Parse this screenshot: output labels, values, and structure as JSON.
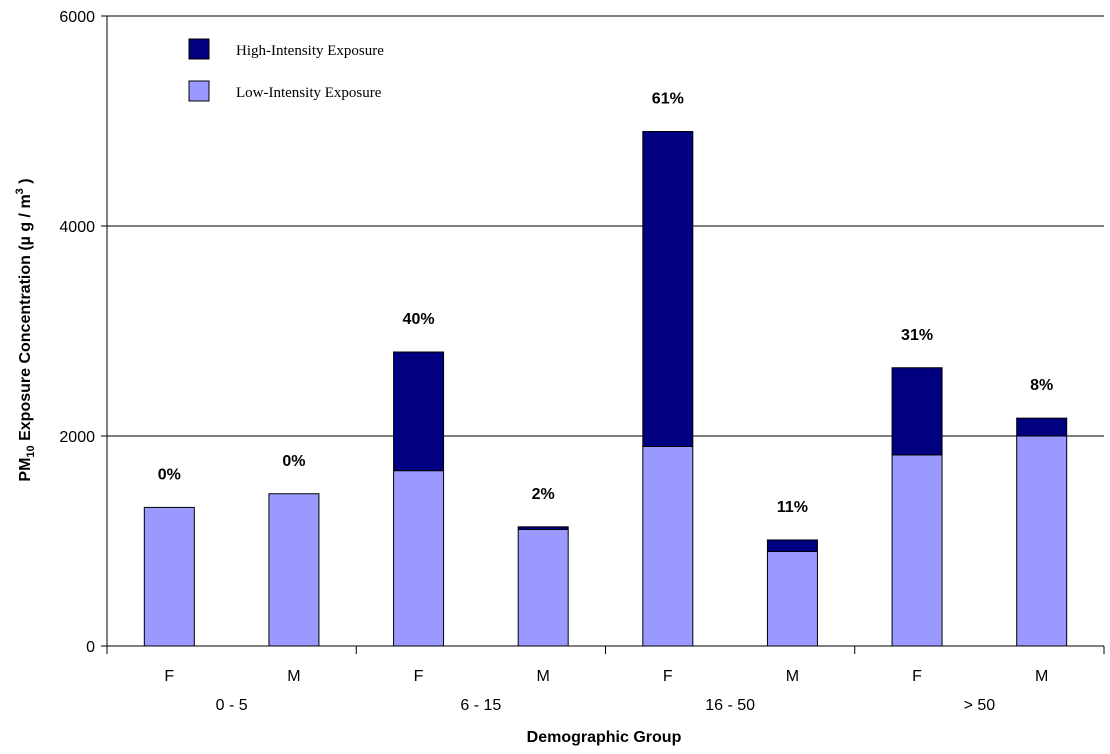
{
  "chart_data": {
    "type": "bar",
    "stacked": true,
    "categories": [
      "F",
      "M",
      "F",
      "M",
      "F",
      "M",
      "F",
      "M"
    ],
    "groups": [
      {
        "label": "0 - 5",
        "categories": [
          "F",
          "M"
        ]
      },
      {
        "label": "6 - 15",
        "categories": [
          "F",
          "M"
        ]
      },
      {
        "label": "16 - 50",
        "categories": [
          "F",
          "M"
        ]
      },
      {
        "label": "> 50",
        "categories": [
          "F",
          "M"
        ]
      }
    ],
    "series": [
      {
        "name": "Low-Intensity Exposure",
        "color": "#9999ff",
        "values": [
          1320,
          1450,
          1670,
          1110,
          1900,
          900,
          1820,
          2000
        ]
      },
      {
        "name": "High-Intensity Exposure",
        "color": "#000080",
        "values": [
          0,
          0,
          1130,
          25,
          3000,
          110,
          830,
          170
        ]
      }
    ],
    "data_labels": [
      "0%",
      "0%",
      "40%",
      "2%",
      "61%",
      "11%",
      "31%",
      "8%"
    ],
    "xlabel": "Demographic Group",
    "ylabel": {
      "prefix": "PM",
      "sub": "10",
      "middle": " Exposure Concentration (µ g / m",
      "sup": "3",
      "suffix": " )"
    },
    "yticks": [
      0,
      2000,
      4000,
      6000
    ],
    "ylim": [
      0,
      6000
    ],
    "grid": true,
    "legend_position": "top-left"
  }
}
